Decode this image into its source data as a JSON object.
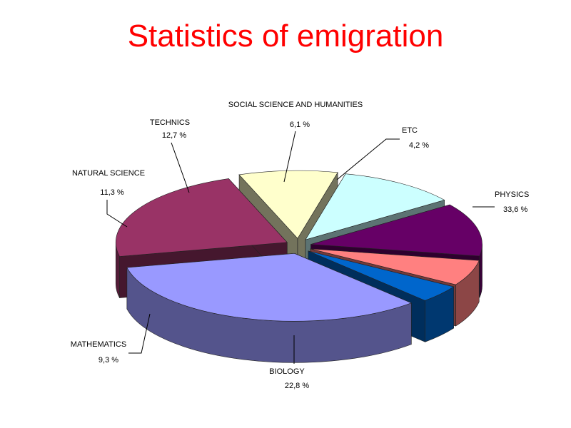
{
  "slide": {
    "title": "Statistics of emigration"
  },
  "chart_data": {
    "type": "pie",
    "title": "",
    "exploded": true,
    "three_d": true,
    "slices": [
      {
        "name": "PHYSICS",
        "value": 33.6,
        "label": "33,6 %",
        "color": "#9999ff"
      },
      {
        "name": "BIOLOGY",
        "value": 22.8,
        "label": "22,8 %",
        "color": "#993366"
      },
      {
        "name": "MATHEMATICS",
        "value": 9.3,
        "label": "9,3 %",
        "color": "#ffffcc"
      },
      {
        "name": "NATURAL SCIENCE",
        "value": 11.3,
        "label": "11,3 %",
        "color": "#ccffff"
      },
      {
        "name": "TECHNICS",
        "value": 12.7,
        "label": "12,7 %",
        "color": "#660066"
      },
      {
        "name": "SOCIAL SCIENCE AND HUMANITIES",
        "value": 6.1,
        "label": "6,1 %",
        "color": "#ff8080"
      },
      {
        "name": "ETC",
        "value": 4.2,
        "label": "4,2 %",
        "color": "#0066cc"
      }
    ]
  }
}
